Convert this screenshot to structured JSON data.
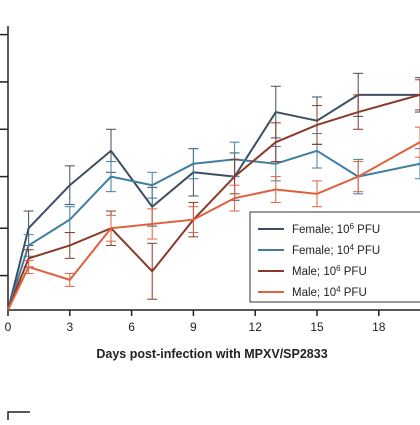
{
  "chart_data": {
    "type": "line",
    "title": "",
    "xlabel": "Days post-infection with MPXV/SP2833",
    "ylabel": "",
    "xlim": [
      0,
      20
    ],
    "ylim": [
      0,
      6.6
    ],
    "x_ticks": [
      0,
      3,
      6,
      9,
      12,
      15,
      18
    ],
    "x_tick_labels": [
      "0",
      "3",
      "6",
      "9",
      "12",
      "15",
      "18"
    ],
    "grid": false,
    "legend_position": "bottom-right",
    "series": [
      {
        "name": "Female; 10",
        "superscript": "6",
        "unit": " PFU",
        "color": "#3d4f60",
        "x": [
          0,
          1,
          3,
          5,
          7,
          9,
          11,
          13,
          15,
          17,
          20
        ],
        "y": [
          0.0,
          1.9,
          2.9,
          3.7,
          2.4,
          3.2,
          3.1,
          4.6,
          4.4,
          5.0,
          5.0
        ],
        "err": [
          0.0,
          0.4,
          0.45,
          0.5,
          0.45,
          0.55,
          0.55,
          0.6,
          0.55,
          0.5,
          0.4
        ]
      },
      {
        "name": "Female; 10",
        "superscript": "4",
        "unit": " PFU",
        "color": "#3f7ea0",
        "x": [
          0,
          1,
          3,
          5,
          7,
          9,
          11,
          13,
          15,
          17,
          20
        ],
        "y": [
          0.0,
          1.5,
          2.1,
          3.1,
          2.9,
          3.4,
          3.5,
          3.4,
          3.7,
          3.1,
          3.4
        ],
        "err": [
          0.0,
          0.25,
          0.3,
          0.35,
          0.3,
          0.35,
          0.4,
          0.4,
          0.4,
          0.4,
          0.35
        ]
      },
      {
        "name": "Male; 10",
        "superscript": "6",
        "unit": " PFU",
        "color": "#8b3a2a",
        "x": [
          0,
          1,
          3,
          5,
          7,
          9,
          11,
          13,
          15,
          17,
          20
        ],
        "y": [
          0.0,
          1.2,
          1.5,
          1.9,
          0.9,
          2.1,
          3.1,
          3.9,
          4.3,
          4.6,
          5.0
        ],
        "err": [
          0.0,
          0.2,
          0.3,
          0.4,
          0.65,
          0.4,
          0.4,
          0.45,
          0.45,
          0.4,
          0.35
        ]
      },
      {
        "name": "Male; 10",
        "superscript": "4",
        "unit": " PFU",
        "color": "#e0603e",
        "x": [
          0,
          1,
          3,
          5,
          7,
          9,
          11,
          13,
          15,
          17,
          20
        ],
        "y": [
          0.0,
          1.0,
          0.7,
          1.9,
          2.0,
          2.1,
          2.6,
          2.8,
          2.7,
          3.1,
          3.9
        ],
        "err": [
          0.0,
          0.15,
          0.15,
          0.3,
          0.35,
          0.3,
          0.3,
          0.3,
          0.3,
          0.35,
          0.35
        ]
      }
    ]
  }
}
